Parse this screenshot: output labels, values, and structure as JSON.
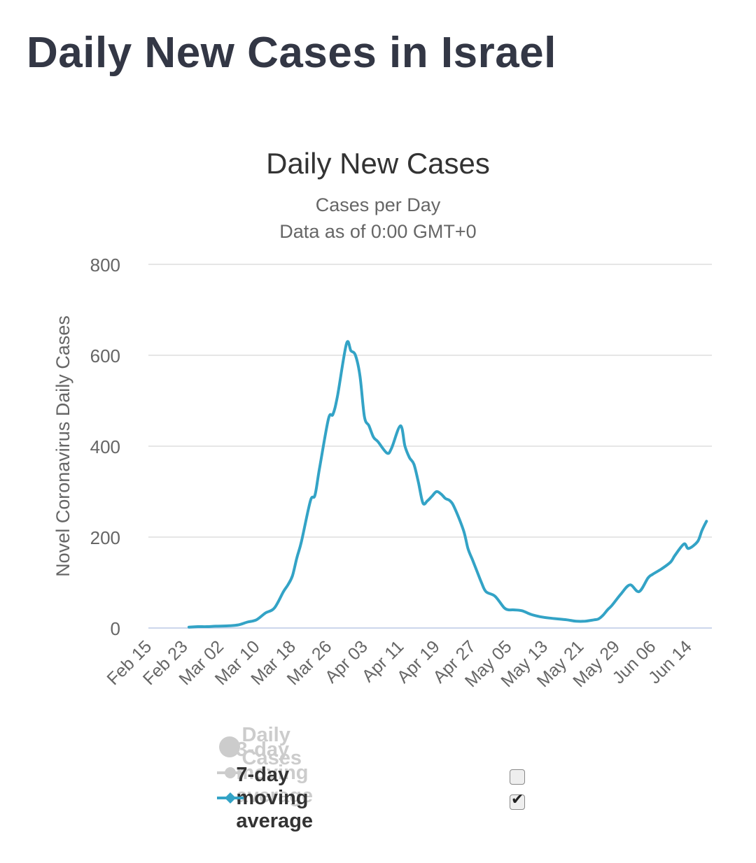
{
  "page": {
    "title": "Daily New Cases in Israel"
  },
  "chart_data": {
    "type": "line",
    "title": "Daily New Cases",
    "subtitle_lines": [
      "Cases per Day",
      "Data as of 0:00 GMT+0"
    ],
    "ylabel": "Novel Coronavirus Daily Cases",
    "xlabel": "",
    "ylim": [
      0,
      800
    ],
    "yticks": [
      0,
      200,
      400,
      600,
      800
    ],
    "x_tick_labels": [
      "Feb 15",
      "Feb 23",
      "Mar 02",
      "Mar 10",
      "Mar 18",
      "Mar 26",
      "Apr 03",
      "Apr 11",
      "Apr 19",
      "Apr 27",
      "May 05",
      "May 13",
      "May 21",
      "May 29",
      "Jun 06",
      "Jun 14"
    ],
    "grid": true,
    "legend_placement": "bottom",
    "colors": {
      "series": "#33a3c6",
      "grid": "#e6e6e6",
      "axis": "#ccd6eb",
      "inactive": "#cccccc"
    },
    "series": [
      {
        "name": "7-day moving average",
        "visible": true,
        "x": [
          "Feb 24",
          "Feb 26",
          "Feb 28",
          "Mar 01",
          "Mar 04",
          "Mar 06",
          "Mar 08",
          "Mar 10",
          "Mar 12",
          "Mar 14",
          "Mar 16",
          "Mar 17",
          "Mar 18",
          "Mar 19",
          "Mar 20",
          "Mar 22",
          "Mar 23",
          "Mar 24",
          "Mar 26",
          "Mar 27",
          "Mar 28",
          "Mar 30",
          "Mar 31",
          "Apr 01",
          "Apr 02",
          "Apr 03",
          "Apr 04",
          "Apr 05",
          "Apr 06",
          "Apr 08",
          "Apr 09",
          "Apr 11",
          "Apr 12",
          "Apr 13",
          "Apr 14",
          "Apr 15",
          "Apr 16",
          "Apr 17",
          "Apr 18",
          "Apr 19",
          "Apr 20",
          "Apr 21",
          "Apr 22",
          "Apr 23",
          "Apr 25",
          "Apr 26",
          "Apr 27",
          "Apr 28",
          "Apr 29",
          "Apr 30",
          "May 02",
          "May 04",
          "May 05",
          "May 06",
          "May 08",
          "May 10",
          "May 12",
          "May 14",
          "May 16",
          "May 18",
          "May 20",
          "May 22",
          "May 24",
          "May 25",
          "May 26",
          "May 27",
          "May 28",
          "May 30",
          "Jun 01",
          "Jun 03",
          "Jun 05",
          "Jun 06",
          "Jun 08",
          "Jun 10",
          "Jun 11",
          "Jun 13",
          "Jun 14",
          "Jun 16",
          "Jun 17",
          "Jun 18"
        ],
        "y": [
          2,
          3,
          3,
          4,
          5,
          7,
          13,
          18,
          33,
          44,
          80,
          95,
          115,
          155,
          190,
          280,
          292,
          350,
          460,
          470,
          510,
          625,
          610,
          600,
          555,
          465,
          445,
          420,
          410,
          385,
          395,
          445,
          400,
          375,
          360,
          320,
          275,
          280,
          290,
          300,
          295,
          285,
          280,
          265,
          215,
          175,
          150,
          125,
          100,
          80,
          70,
          45,
          40,
          40,
          38,
          30,
          25,
          22,
          20,
          18,
          15,
          15,
          18,
          20,
          28,
          40,
          50,
          75,
          95,
          80,
          110,
          118,
          130,
          145,
          160,
          185,
          175,
          190,
          215,
          235
        ]
      },
      {
        "name": "Daily Cases",
        "visible": false
      },
      {
        "name": "3-day moving average",
        "visible": false
      }
    ]
  },
  "legend": {
    "items": [
      {
        "label": "Daily Cases",
        "state": "hidden",
        "has_checkbox": false
      },
      {
        "label": "3-day moving average",
        "state": "hidden",
        "has_checkbox": true,
        "checked": false
      },
      {
        "label": "7-day moving average",
        "state": "visible",
        "has_checkbox": true,
        "checked": true
      }
    ]
  }
}
